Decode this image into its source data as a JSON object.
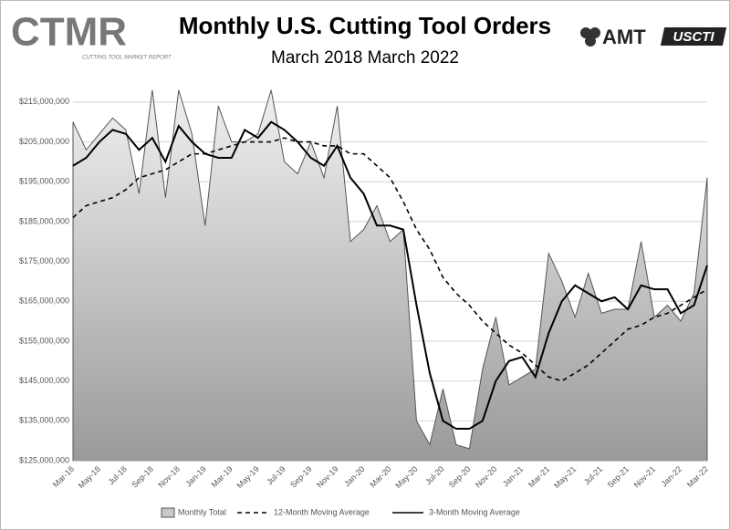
{
  "logos": {
    "ctmr": "CTMR",
    "ctmr_tagline": "CUTTING TOOL MARKET REPORT",
    "amt": "AMT",
    "uscti": "USCTI"
  },
  "chart_data": {
    "type": "area-line",
    "title": "Monthly U.S. Cutting Tool Orders",
    "subtitle": "March 2018 March 2022",
    "categories": [
      "Mar-18",
      null,
      "May-18",
      null,
      "Jul-18",
      null,
      "Sep-18",
      null,
      "Nov-18",
      null,
      "Jan-19",
      null,
      "Mar-19",
      null,
      "May-19",
      null,
      "Jul-19",
      null,
      "Sep-19",
      null,
      "Nov-19",
      null,
      "Jan-20",
      null,
      "Mar-20",
      null,
      "May-20",
      null,
      "Jul-20",
      null,
      "Sep-20",
      null,
      "Nov-20",
      null,
      "Jan-21",
      null,
      "Mar-21",
      null,
      "May-21",
      null,
      "Jul-21",
      null,
      "Sep-21",
      null,
      "Nov-21",
      null,
      "Jan-22",
      null,
      "Mar-22"
    ],
    "series": [
      {
        "name": "Monthly Total",
        "kind": "area",
        "color": "#555555",
        "fill": "#c8c8c8",
        "values": [
          210000000,
          203000000,
          207000000,
          211000000,
          208000000,
          192000000,
          218000000,
          191000000,
          218000000,
          207000000,
          184000000,
          214000000,
          205000000,
          205000000,
          207000000,
          218000000,
          200000000,
          197000000,
          205000000,
          196000000,
          214000000,
          180000000,
          183000000,
          189000000,
          180000000,
          183000000,
          135000000,
          129000000,
          143000000,
          129000000,
          128000000,
          148000000,
          161000000,
          144000000,
          146000000,
          148000000,
          177000000,
          170000000,
          161000000,
          172000000,
          162000000,
          163000000,
          163000000,
          180000000,
          161000000,
          164000000,
          160000000,
          167000000,
          196000000
        ]
      },
      {
        "name": "12-Month Moving Average",
        "kind": "line",
        "dash": true,
        "color": "#000000",
        "values": [
          186000000,
          189000000,
          190000000,
          191000000,
          193000000,
          196000000,
          197000000,
          198000000,
          200000000,
          202000000,
          202000000,
          203000000,
          204000000,
          205000000,
          205000000,
          205000000,
          206000000,
          205000000,
          205000000,
          204000000,
          204000000,
          202000000,
          202000000,
          199000000,
          196000000,
          190000000,
          183000000,
          178000000,
          171000000,
          167000000,
          164000000,
          160000000,
          157000000,
          154000000,
          152000000,
          149000000,
          146000000,
          145000000,
          147000000,
          149000000,
          152000000,
          155000000,
          158000000,
          159000000,
          161000000,
          162000000,
          164000000,
          166000000,
          168000000
        ]
      },
      {
        "name": "3-Month Moving Average",
        "kind": "line",
        "dash": false,
        "color": "#000000",
        "values": [
          199000000,
          201000000,
          205000000,
          208000000,
          207000000,
          203000000,
          206000000,
          200000000,
          209000000,
          205000000,
          202000000,
          201000000,
          201000000,
          208000000,
          206000000,
          210000000,
          208000000,
          205000000,
          201000000,
          199000000,
          204000000,
          196000000,
          192000000,
          184000000,
          184000000,
          183000000,
          164000000,
          147000000,
          135000000,
          133000000,
          133000000,
          135000000,
          145000000,
          150000000,
          151000000,
          146000000,
          157000000,
          165000000,
          169000000,
          167000000,
          165000000,
          166000000,
          163000000,
          169000000,
          168000000,
          168000000,
          162000000,
          164000000,
          174000000
        ]
      }
    ],
    "ylim": [
      125000000,
      220000000
    ],
    "yticks": [
      {
        "value": 125000000,
        "label": "$125,000,000"
      },
      {
        "value": 135000000,
        "label": "$135,000,000"
      },
      {
        "value": 145000000,
        "label": "$145,000,000"
      },
      {
        "value": 155000000,
        "label": "$155,000,000"
      },
      {
        "value": 165000000,
        "label": "$165,000,000"
      },
      {
        "value": 175000000,
        "label": "$175,000,000"
      },
      {
        "value": 185000000,
        "label": "$185,000,000"
      },
      {
        "value": 195000000,
        "label": "$195,000,000"
      },
      {
        "value": 205000000,
        "label": "$205,000,000"
      },
      {
        "value": 215000000,
        "label": "$215,000,000"
      }
    ],
    "grid": true,
    "legend": "bottom"
  }
}
